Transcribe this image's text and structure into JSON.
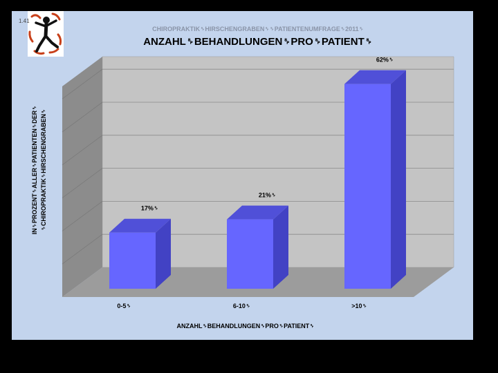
{
  "slide": {
    "page_number": "1.41"
  },
  "chart_data": {
    "type": "bar",
    "supertitle": "CHIROPRAKTIK␠HIRSCHENGRABEN␠␠PATIENTENUMFRAGE␠2011␠",
    "title": "ANZAHL␠BEHANDLUNGEN␠PRO␠PATIENT␠",
    "categories": [
      "0-5␠",
      "6-10␠",
      ">10␠"
    ],
    "values": [
      17,
      21,
      62
    ],
    "data_labels": [
      "17%␠",
      "21%␠",
      "62%␠"
    ],
    "xlabel": "ANZAHL␠BEHANDLUNGEN␠PRO␠PATIENT␠",
    "ylabel_lines": [
      "IN␠PROZENT␠ALLER␠PATIENTEN␠DER␠",
      "␠CHIROPRAKTIK␠HIRSCHENGRABEN␠"
    ],
    "ylim": [
      0,
      70
    ],
    "grid": true,
    "legend": "none",
    "colors": {
      "bar_front": "#6666ff",
      "bar_side": "#4242c4",
      "bar_top": "#5050d8",
      "back_wall": "#c4c4c4",
      "side_wall": "#8c8c8c",
      "floor": "#9c9c9c",
      "grid": "#8a8a8a"
    }
  }
}
